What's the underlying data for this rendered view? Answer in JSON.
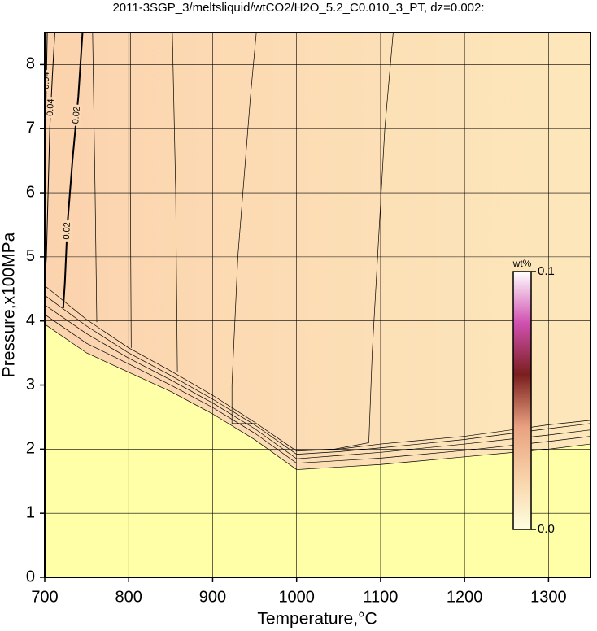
{
  "chart_data": {
    "type": "contour",
    "title": "2011-3SGP_3/meltsliquid/wtCO2/H2O_5.2_C0.010_3_PT, dz=0.002:",
    "xlabel": "Temperature,°C",
    "ylabel": "Pressure,x100MPa",
    "xlim": [
      700,
      1350
    ],
    "ylim": [
      0,
      8.5
    ],
    "xticks": [
      700,
      800,
      900,
      1000,
      1100,
      1200,
      1300
    ],
    "yticks": [
      0,
      1,
      2,
      3,
      4,
      5,
      6,
      7,
      8
    ],
    "grid": true,
    "fill_below": "#ffffa8",
    "fill_above": [
      "#fbd3ae",
      "#fde7bb"
    ],
    "line_color": "#000000",
    "contours": [
      {
        "x": [
          700,
          750,
          800,
          850,
          900,
          950,
          1000,
          1050,
          1100,
          1200,
          1300,
          1350
        ],
        "y": [
          3.95,
          3.5,
          3.2,
          2.9,
          2.55,
          2.15,
          1.68,
          1.72,
          1.76,
          1.88,
          2.0,
          2.08
        ]
      },
      {
        "x": [
          700,
          750,
          800,
          850,
          900,
          950,
          1000,
          1050,
          1100,
          1200,
          1300,
          1350
        ],
        "y": [
          4.1,
          3.65,
          3.33,
          3.0,
          2.65,
          2.25,
          1.78,
          1.82,
          1.86,
          1.98,
          2.12,
          2.2
        ]
      },
      {
        "x": [
          700,
          750,
          800,
          850,
          900,
          950,
          1000,
          1050,
          1100,
          1200,
          1300,
          1350
        ],
        "y": [
          4.25,
          3.8,
          3.42,
          3.08,
          2.72,
          2.32,
          1.85,
          1.9,
          1.95,
          2.08,
          2.22,
          2.3
        ]
      },
      {
        "x": [
          700,
          750,
          800,
          850,
          900,
          950,
          1000,
          1050,
          1100,
          1200,
          1300,
          1350
        ],
        "y": [
          4.4,
          3.92,
          3.5,
          3.15,
          2.78,
          2.38,
          1.92,
          1.96,
          2.02,
          2.15,
          2.32,
          2.4
        ]
      },
      {
        "x": [
          700,
          750,
          800,
          850,
          900,
          950,
          1000,
          1050,
          1100,
          1200,
          1300,
          1350
        ],
        "y": [
          4.55,
          4.02,
          3.58,
          3.22,
          2.84,
          2.42,
          1.97,
          2.0,
          2.08,
          2.2,
          2.38,
          2.45
        ]
      },
      {
        "x": [
          757,
          760,
          762
        ],
        "y": [
          8.5,
          6,
          3.98
        ]
      },
      {
        "x": [
          802,
          802,
          803
        ],
        "y": [
          8.5,
          6,
          3.58
        ]
      },
      {
        "x": [
          852,
          856,
          858
        ],
        "y": [
          8.5,
          6,
          3.2
        ]
      },
      {
        "x": [
          952,
          945,
          930,
          923,
          923,
          950
        ],
        "y": [
          8.5,
          7.5,
          5,
          3,
          2.4,
          2.4
        ]
      },
      {
        "x": [
          1115,
          1105,
          1090,
          1086,
          1045
        ],
        "y": [
          8.5,
          7,
          3.5,
          2.1,
          2.0
        ]
      },
      {
        "x": [
          745,
          740,
          733,
          727,
          724,
          722
        ],
        "y": [
          8.5,
          7.5,
          6.5,
          5.5,
          4.6,
          4.2
        ],
        "level": 0.02,
        "width": 2
      },
      {
        "x": [
          712,
          709,
          706,
          704,
          702,
          700
        ],
        "y": [
          8.5,
          7.8,
          7,
          6,
          5,
          4.6
        ],
        "level": 0.04,
        "width": 1
      },
      {
        "x": [
          703,
          702,
          701,
          700.5
        ],
        "y": [
          8.5,
          7.8,
          7,
          6
        ],
        "level": 0.04,
        "width": 1
      }
    ],
    "colorbar": {
      "label": "wt%",
      "lim": [
        0,
        0.1
      ],
      "ticks": [
        {
          "value": 0,
          "label": "0.0"
        },
        {
          "value": 0.1,
          "label": "0.1"
        }
      ],
      "colors": [
        "#ffffe0",
        "#f8d2a8",
        "#e8a080",
        "#7a1e1e",
        "#d050b0",
        "#ffffff"
      ]
    }
  }
}
